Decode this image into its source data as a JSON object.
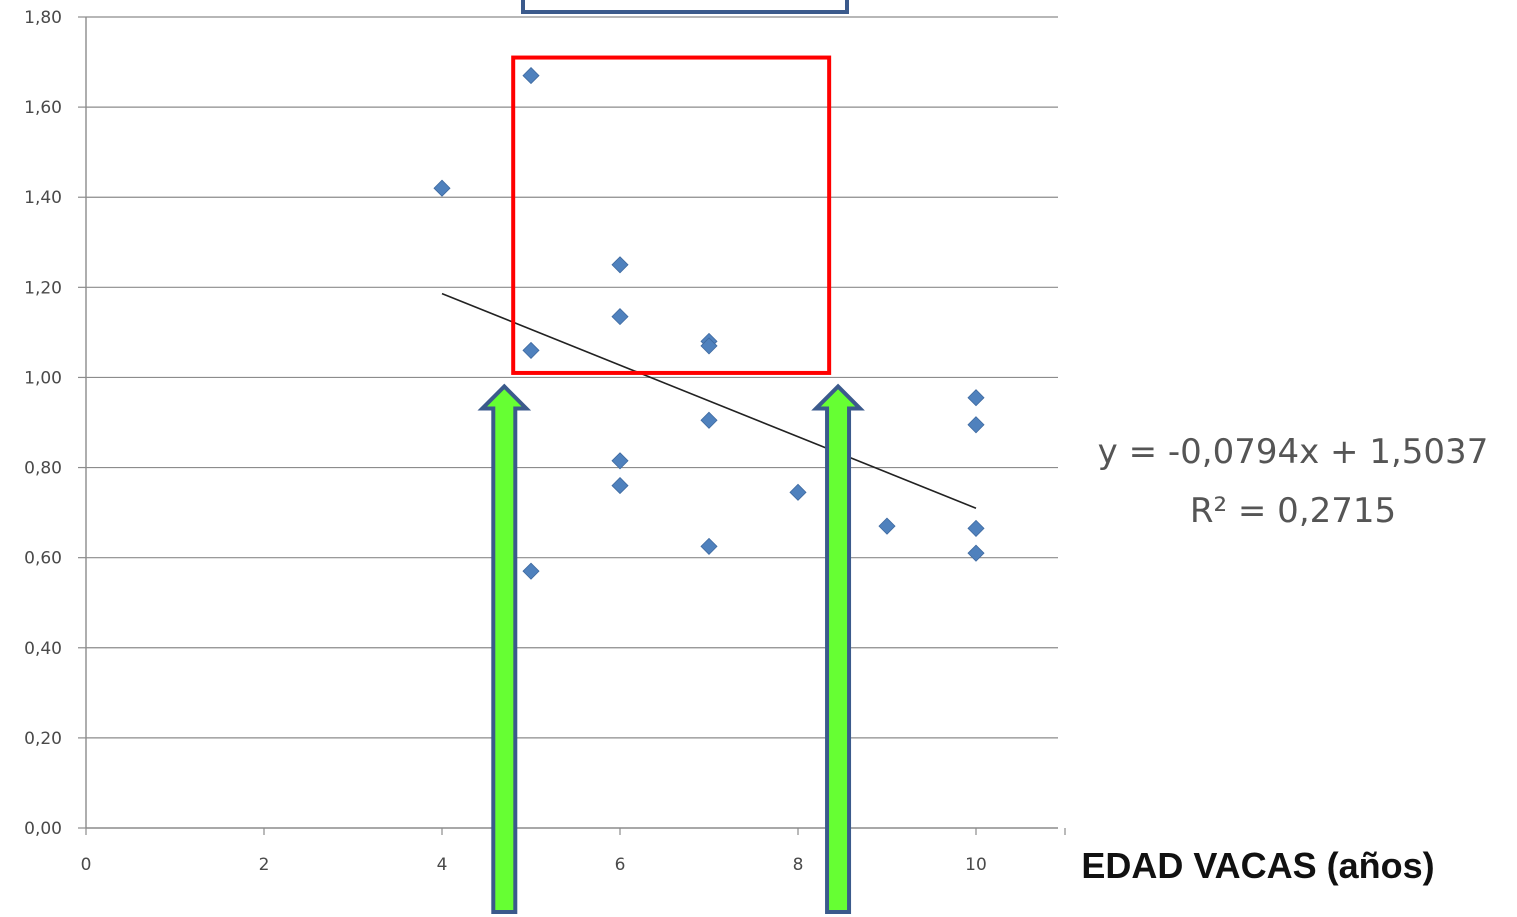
{
  "chart_data": {
    "type": "scatter",
    "title": "",
    "xlabel": "EDAD VACAS (años)",
    "ylabel": "",
    "xlim": [
      0,
      11
    ],
    "ylim": [
      0,
      1.8
    ],
    "x_ticks": [
      "0",
      "2",
      "4",
      "6",
      "8",
      "10"
    ],
    "y_ticks": [
      "0,00",
      "0,20",
      "0,40",
      "0,60",
      "0,80",
      "1,00",
      "1,20",
      "1,40",
      "1,60",
      "1,80"
    ],
    "grid": "horizontal",
    "series": [
      {
        "marker": "diamond",
        "color": "#4F81BD",
        "points": [
          {
            "x": 4,
            "y": 1.42
          },
          {
            "x": 5,
            "y": 1.67
          },
          {
            "x": 5,
            "y": 1.06
          },
          {
            "x": 5,
            "y": 0.57
          },
          {
            "x": 6,
            "y": 1.25
          },
          {
            "x": 6,
            "y": 1.135
          },
          {
            "x": 6,
            "y": 0.815
          },
          {
            "x": 6,
            "y": 0.76
          },
          {
            "x": 7,
            "y": 1.08
          },
          {
            "x": 7,
            "y": 1.07
          },
          {
            "x": 7,
            "y": 0.905
          },
          {
            "x": 7,
            "y": 0.625
          },
          {
            "x": 8,
            "y": 0.745
          },
          {
            "x": 9,
            "y": 0.67
          },
          {
            "x": 10,
            "y": 0.955
          },
          {
            "x": 10,
            "y": 0.895
          },
          {
            "x": 10,
            "y": 0.665
          },
          {
            "x": 10,
            "y": 0.61
          }
        ]
      }
    ],
    "trendline": {
      "slope": -0.0794,
      "intercept": 1.5037,
      "x_range": [
        4,
        10
      ],
      "color": "#222222",
      "equation_text": "y = -0,0794x + 1,5037",
      "r2_text": "R² = 0,2715"
    },
    "annotations": {
      "highlight_box": {
        "x_range": [
          4.8,
          8.35
        ],
        "y_range": [
          1.01,
          1.71
        ],
        "color": "#FF0000"
      },
      "arrows": [
        {
          "x": 4.7,
          "y_tip": 0.98,
          "color": "#66FF33",
          "stroke": "#3B5A8C"
        },
        {
          "x": 8.45,
          "y_tip": 0.98,
          "color": "#66FF33",
          "stroke": "#3B5A8C"
        }
      ],
      "top_box_color": "#3B5A8C"
    }
  }
}
